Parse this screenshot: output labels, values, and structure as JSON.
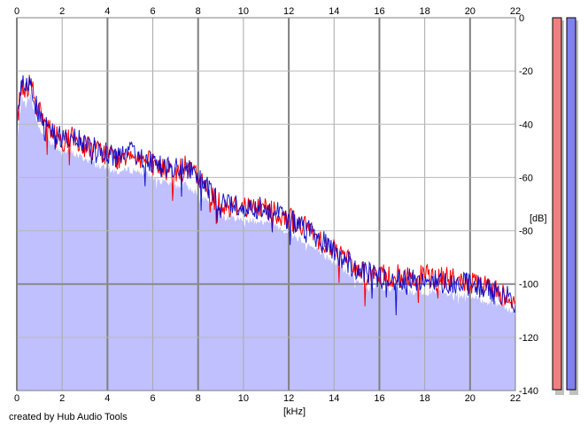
{
  "chart_data": {
    "type": "area",
    "xlabel": "[kHz]",
    "ylabel": "[dB]",
    "xlim": [
      0,
      22
    ],
    "ylim": [
      -140,
      0
    ],
    "x_ticks": [
      0,
      2,
      4,
      6,
      8,
      10,
      12,
      14,
      16,
      18,
      20,
      22
    ],
    "y_ticks": [
      0,
      -20,
      -40,
      -60,
      -80,
      -100,
      -120,
      -140
    ],
    "grid": true,
    "series": [
      {
        "color": "#ff0000",
        "x": [
          0.0,
          0.2,
          0.4,
          0.6,
          0.8,
          1.0,
          1.5,
          2.0,
          2.5,
          3.0,
          3.5,
          4.0,
          4.5,
          5.0,
          5.5,
          6.0,
          6.5,
          7.0,
          7.5,
          8.0,
          8.5,
          9.0,
          9.5,
          10.0,
          10.5,
          11.0,
          11.5,
          12.0,
          12.5,
          13.0,
          13.5,
          14.0,
          14.5,
          15.0,
          15.5,
          16.0,
          16.5,
          17.0,
          17.5,
          18.0,
          18.5,
          19.0,
          19.5,
          20.0,
          20.5,
          21.0,
          21.5,
          22.0
        ],
        "y": [
          -40,
          -25,
          -28,
          -22,
          -30,
          -36,
          -43,
          -46,
          -45,
          -48,
          -50,
          -51,
          -53,
          -50,
          -53,
          -55,
          -57,
          -58,
          -56,
          -60,
          -66,
          -70,
          -71,
          -70,
          -72,
          -71,
          -73,
          -75,
          -78,
          -80,
          -84,
          -87,
          -90,
          -94,
          -96,
          -97,
          -97,
          -97,
          -98,
          -97,
          -98,
          -98,
          -99,
          -100,
          -101,
          -102,
          -104,
          -106
        ]
      },
      {
        "color": "#0000cc",
        "x": [
          0.0,
          0.2,
          0.4,
          0.6,
          0.8,
          1.0,
          1.5,
          2.0,
          2.5,
          3.0,
          3.5,
          4.0,
          4.5,
          5.0,
          5.5,
          6.0,
          6.5,
          7.0,
          7.5,
          8.0,
          8.5,
          9.0,
          9.5,
          10.0,
          10.5,
          11.0,
          11.5,
          12.0,
          12.5,
          13.0,
          13.5,
          14.0,
          14.5,
          15.0,
          15.5,
          16.0,
          16.5,
          17.0,
          17.5,
          18.0,
          18.5,
          19.0,
          19.5,
          20.0,
          20.5,
          21.0,
          21.5,
          22.0
        ],
        "y": [
          -42,
          -24,
          -27,
          -23,
          -31,
          -37,
          -43,
          -45,
          -46,
          -47,
          -49,
          -51,
          -52,
          -51,
          -52,
          -54,
          -56,
          -57,
          -57,
          -61,
          -65,
          -69,
          -70,
          -71,
          -71,
          -72,
          -72,
          -76,
          -78,
          -81,
          -84,
          -88,
          -91,
          -95,
          -96,
          -98,
          -98,
          -98,
          -99,
          -98,
          -99,
          -99,
          -100,
          -100,
          -101,
          -103,
          -104,
          -107
        ]
      }
    ],
    "fill": {
      "color": "#c0c0ff",
      "x": [
        0.0,
        0.2,
        0.4,
        0.6,
        0.8,
        1.0,
        1.5,
        2.0,
        2.5,
        3.0,
        3.5,
        4.0,
        4.5,
        5.0,
        5.5,
        6.0,
        6.5,
        7.0,
        7.5,
        8.0,
        8.5,
        9.0,
        9.5,
        10.0,
        10.5,
        11.0,
        11.5,
        12.0,
        12.5,
        13.0,
        13.5,
        14.0,
        14.5,
        15.0,
        15.5,
        16.0,
        16.5,
        17.0,
        17.5,
        18.0,
        18.5,
        19.0,
        19.5,
        20.0,
        20.5,
        21.0,
        21.5,
        22.0
      ],
      "y": [
        -48,
        -30,
        -33,
        -29,
        -36,
        -42,
        -47,
        -50,
        -51,
        -53,
        -55,
        -57,
        -58,
        -57,
        -58,
        -60,
        -62,
        -63,
        -63,
        -66,
        -70,
        -74,
        -75,
        -76,
        -76,
        -77,
        -78,
        -81,
        -83,
        -86,
        -89,
        -92,
        -95,
        -99,
        -101,
        -102,
        -102,
        -102,
        -103,
        -103,
        -103,
        -104,
        -104,
        -105,
        -106,
        -107,
        -108,
        -111
      ]
    }
  },
  "meters": [
    {
      "color": "#f08080",
      "level": 0.0
    },
    {
      "color": "#8080f0",
      "level": 0.0
    }
  ],
  "footer": {
    "credit": "created by Hub Audio Tools"
  }
}
